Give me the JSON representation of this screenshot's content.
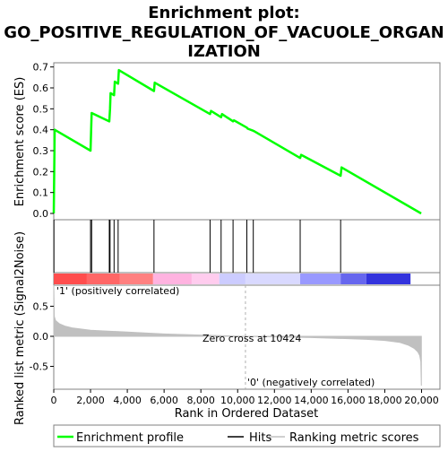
{
  "chart_data": {
    "type": "line",
    "title_lines": [
      "Enrichment plot:",
      "GO_POSITIVE_REGULATION_OF_VACUOLE_ORGAN",
      "IZATION"
    ],
    "xlabel": "Rank in Ordered Dataset",
    "es_ylabel": "Enrichment score (ES)",
    "metric_ylabel": "Ranked list metric (Signal2Noise)",
    "x_range": [
      0,
      21000
    ],
    "x_ticks": [
      0,
      2000,
      4000,
      6000,
      8000,
      10000,
      12000,
      14000,
      16000,
      18000,
      20000
    ],
    "x_tick_labels": [
      "0",
      "2,000",
      "4,000",
      "6,000",
      "8,000",
      "10,000",
      "12,000",
      "14,000",
      "16,000",
      "18,000",
      "20,000"
    ],
    "es_ylim": [
      -0.03,
      0.72
    ],
    "es_ticks": [
      0.0,
      0.1,
      0.2,
      0.3,
      0.4,
      0.5,
      0.6,
      0.7
    ],
    "es_tick_labels": [
      "0.0",
      "0.1",
      "0.2",
      "0.3",
      "0.4",
      "0.5",
      "0.6",
      "0.7"
    ],
    "metric_ylim": [
      -0.88,
      0.85
    ],
    "metric_ticks": [
      0.5,
      0.0,
      -0.5
    ],
    "metric_tick_labels": [
      "0.5",
      "0.0",
      "-0.5"
    ],
    "series": [
      {
        "name": "Enrichment profile",
        "color": "#00ff00",
        "x": [
          0,
          50,
          2000,
          2030,
          2060,
          3020,
          3060,
          3090,
          3280,
          3320,
          3500,
          3540,
          5450,
          5490,
          8500,
          8550,
          9100,
          9150,
          9750,
          9800,
          10500,
          10550,
          10850,
          10900,
          13400,
          13450,
          15600,
          15650,
          19980
        ],
        "y": [
          0.0,
          0.4,
          0.3,
          0.39,
          0.48,
          0.44,
          0.5,
          0.575,
          0.565,
          0.63,
          0.62,
          0.685,
          0.585,
          0.625,
          0.475,
          0.49,
          0.46,
          0.475,
          0.44,
          0.445,
          0.41,
          0.405,
          0.395,
          0.393,
          0.265,
          0.28,
          0.18,
          0.22,
          0.0
        ]
      }
    ],
    "hits": [
      10,
      2000,
      2060,
      3020,
      3060,
      3280,
      3500,
      5450,
      8500,
      9100,
      9750,
      10500,
      10850,
      13400,
      15600
    ],
    "hits_label": "Hits",
    "metric_curve": {
      "name": "Ranking metric scores",
      "color": "#c0c0c0",
      "x": [
        0,
        30,
        100,
        300,
        600,
        1000,
        2000,
        4000,
        6000,
        8000,
        10424,
        12000,
        14000,
        16000,
        17000,
        18000,
        18800,
        19300,
        19600,
        19800,
        19900,
        19960,
        19990
      ],
      "y": [
        0.85,
        0.33,
        0.26,
        0.21,
        0.17,
        0.14,
        0.1,
        0.07,
        0.04,
        0.02,
        0.0,
        -0.01,
        -0.02,
        -0.04,
        -0.05,
        -0.07,
        -0.1,
        -0.15,
        -0.2,
        -0.26,
        -0.32,
        -0.42,
        -0.82
      ]
    },
    "zero_cross_x": 10424,
    "annotations": {
      "zero_cross": "Zero cross at 10424",
      "positive": "'1' (positively correlated)",
      "negative": "'0' (negatively correlated)"
    },
    "annotation_colors": {
      "positive": "#ff0000",
      "negative": "#0000ff"
    },
    "ranking_bar_colors": [
      "#ff4d4d",
      "#ff6666",
      "#ff8080",
      "#ffb3e0",
      "#ffccee",
      "#ccccff",
      "#d9d9ff",
      "#9999ff",
      "#6666ee",
      "#3333dd"
    ],
    "legend": [
      "Enrichment profile",
      "Hits",
      "Ranking metric scores"
    ],
    "legend_position": "bottom",
    "grid": false
  }
}
